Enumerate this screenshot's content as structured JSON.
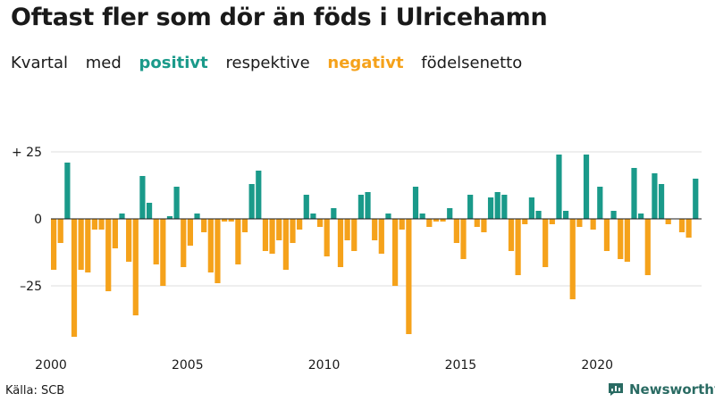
{
  "header": {
    "title": "Oftast fler som dör än föds i Ulricehamn",
    "subtitle_parts": [
      "Kvartal",
      "med",
      "positivt",
      "respektive",
      "negativt",
      "födelsenetto"
    ]
  },
  "footer": {
    "source": "Källa: SCB",
    "brand": "Newsworthy"
  },
  "colors": {
    "positive": "#1a9a8a",
    "negative": "#f5a21b",
    "grid": "#dddddd",
    "axis": "#1a1a1a"
  },
  "chart_data": {
    "type": "bar",
    "title": "Oftast fler som dör än föds i Ulricehamn",
    "xlabel": "",
    "ylabel": "",
    "ylim": [
      -45,
      30
    ],
    "y_ticks": [
      {
        "value": 25,
        "label": "+ 25"
      },
      {
        "value": 0,
        "label": "0"
      },
      {
        "value": -25,
        "label": "–25"
      }
    ],
    "x_ticks": [
      {
        "year": 2000,
        "label": "2000"
      },
      {
        "year": 2005,
        "label": "2005"
      },
      {
        "year": 2010,
        "label": "2010"
      },
      {
        "year": 2015,
        "label": "2015"
      },
      {
        "year": 2020,
        "label": "2020"
      }
    ],
    "start_year": 2000,
    "quarters_per_year": 4,
    "series": [
      {
        "name": "födelsenetto per kvartal",
        "values": [
          -19,
          -9,
          21,
          -44,
          -19,
          -20,
          -4,
          -4,
          -27,
          -11,
          2,
          -16,
          -36,
          16,
          6,
          -17,
          -25,
          1,
          12,
          -18,
          -10,
          2,
          -5,
          -20,
          -24,
          -1,
          -1,
          -17,
          -5,
          13,
          18,
          -12,
          -13,
          -8,
          -19,
          -9,
          -4,
          9,
          2,
          -3,
          -14,
          4,
          -18,
          -8,
          -12,
          9,
          10,
          -8,
          -13,
          2,
          -25,
          -4,
          -43,
          12,
          2,
          -3,
          -1,
          -1,
          4,
          -9,
          -15,
          9,
          -3,
          -5,
          8,
          10,
          9,
          -12,
          -21,
          -2,
          8,
          3,
          -18,
          -2,
          24,
          3,
          -30,
          -3,
          24,
          -4,
          12,
          -12,
          3,
          -15,
          -16,
          19,
          2,
          -21,
          17,
          13,
          -2,
          0,
          -5,
          -7,
          15
        ]
      }
    ]
  }
}
